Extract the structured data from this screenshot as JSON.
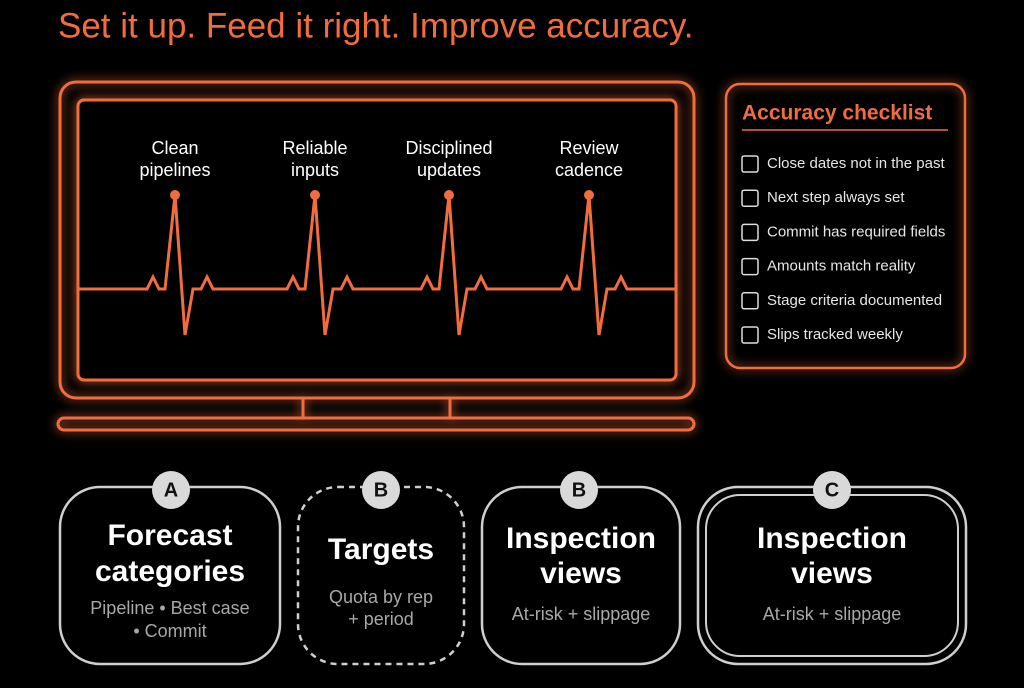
{
  "title": "Set it up. Feed it right. Improve accuracy.",
  "monitor": {
    "labels": [
      [
        "Clean",
        "pipelines"
      ],
      [
        "Reliable",
        "inputs"
      ],
      [
        "Disciplined",
        "updates"
      ],
      [
        "Review",
        "cadence"
      ]
    ]
  },
  "checklist": {
    "title": "Accuracy checklist",
    "items": [
      "Close dates not in the past",
      "Next step always set",
      "Commit has required fields",
      "Amounts match reality",
      "Stage criteria documented",
      "Slips tracked weekly"
    ]
  },
  "cards": [
    {
      "badge": "A",
      "title": [
        "Forecast",
        "categories"
      ],
      "subtitle": [
        "Pipeline • Best case",
        "• Commit"
      ]
    },
    {
      "badge": "B",
      "title": [
        "Targets"
      ],
      "subtitle": [
        "Quota by rep",
        "+ period"
      ]
    },
    {
      "badge": "B",
      "title": [
        "Inspection",
        "views"
      ],
      "subtitle": [
        "At-risk + slippage"
      ]
    },
    {
      "badge": "C",
      "title": [
        "Inspection",
        "views"
      ],
      "subtitle": [
        "At-risk + slippage"
      ]
    }
  ]
}
